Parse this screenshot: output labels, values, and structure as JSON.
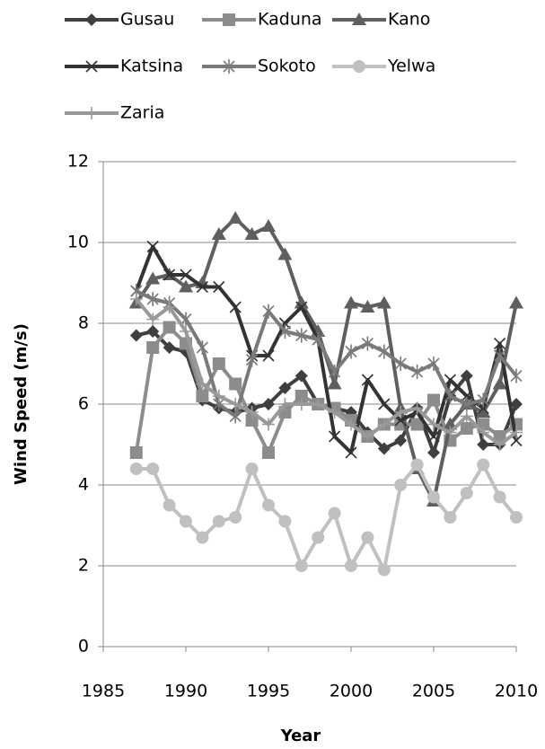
{
  "chart_data": {
    "type": "line",
    "x": [
      1987,
      1988,
      1989,
      1990,
      1991,
      1992,
      1993,
      1994,
      1995,
      1996,
      1997,
      1998,
      1999,
      2000,
      2001,
      2002,
      2003,
      2004,
      2005,
      2006,
      2007,
      2008,
      2009,
      2010
    ],
    "series": [
      {
        "name": "Gusau",
        "color": "#3f3f3f",
        "marker": "diamond",
        "values": [
          7.7,
          7.8,
          7.4,
          7.3,
          6.1,
          5.9,
          5.8,
          5.9,
          6.0,
          6.4,
          6.7,
          6.0,
          5.9,
          5.8,
          5.3,
          4.9,
          5.1,
          5.9,
          4.8,
          6.2,
          6.7,
          5.0,
          5.0,
          6.0
        ]
      },
      {
        "name": "Kaduna",
        "color": "#8c8c8c",
        "marker": "square",
        "values": [
          4.8,
          7.4,
          7.9,
          7.5,
          6.2,
          7.0,
          6.5,
          5.6,
          4.8,
          5.8,
          6.2,
          6.0,
          5.9,
          5.6,
          5.2,
          5.5,
          5.5,
          5.5,
          6.1,
          5.1,
          5.4,
          5.5,
          5.2,
          5.5
        ]
      },
      {
        "name": "Kano",
        "color": "#5f5f5f",
        "marker": "triangle",
        "values": [
          8.5,
          9.1,
          9.2,
          8.9,
          9.0,
          10.2,
          10.6,
          10.2,
          10.4,
          9.7,
          8.5,
          7.8,
          6.5,
          8.5,
          8.4,
          8.5,
          5.9,
          4.4,
          3.6,
          5.5,
          6.0,
          5.8,
          6.5,
          8.5
        ]
      },
      {
        "name": "Katsina",
        "color": "#333333",
        "marker": "cross",
        "values": [
          8.8,
          9.9,
          9.2,
          9.2,
          8.9,
          8.9,
          8.4,
          7.2,
          7.2,
          8.0,
          8.4,
          7.6,
          5.2,
          4.8,
          6.6,
          6.0,
          5.6,
          5.8,
          5.2,
          6.6,
          6.2,
          5.9,
          7.5,
          5.1
        ]
      },
      {
        "name": "Sokoto",
        "color": "#7a7a7a",
        "marker": "star",
        "values": [
          8.8,
          8.6,
          8.5,
          8.1,
          7.4,
          6.0,
          5.7,
          7.1,
          8.3,
          7.8,
          7.7,
          7.6,
          6.8,
          7.3,
          7.5,
          7.3,
          7.0,
          6.8,
          7.0,
          6.2,
          6.0,
          6.1,
          7.2,
          6.7
        ]
      },
      {
        "name": "Yelwa",
        "color": "#c0c0c0",
        "marker": "circle",
        "values": [
          4.4,
          4.4,
          3.5,
          3.1,
          2.7,
          3.1,
          3.2,
          4.4,
          3.5,
          3.1,
          2.0,
          2.7,
          3.3,
          2.0,
          2.7,
          1.9,
          4.0,
          4.5,
          3.7,
          3.2,
          3.8,
          4.5,
          3.7,
          3.2
        ]
      },
      {
        "name": "Zaria",
        "color": "#999999",
        "marker": "plus",
        "values": [
          8.6,
          8.1,
          8.4,
          7.8,
          6.5,
          6.2,
          6.0,
          5.8,
          5.5,
          6.0,
          6.0,
          6.0,
          5.8,
          5.5,
          5.2,
          5.5,
          5.8,
          5.9,
          5.5,
          5.3,
          5.7,
          5.3,
          5.0,
          5.3
        ]
      }
    ],
    "xlim": [
      1985,
      2010
    ],
    "xticks": [
      1985,
      1990,
      1995,
      2000,
      2005,
      2010
    ],
    "ylim": [
      0,
      12
    ],
    "yticks": [
      0,
      2,
      4,
      6,
      8,
      10,
      12
    ],
    "xlabel": "Year",
    "ylabel": "Wind Speed (m/s)",
    "grid": true
  }
}
